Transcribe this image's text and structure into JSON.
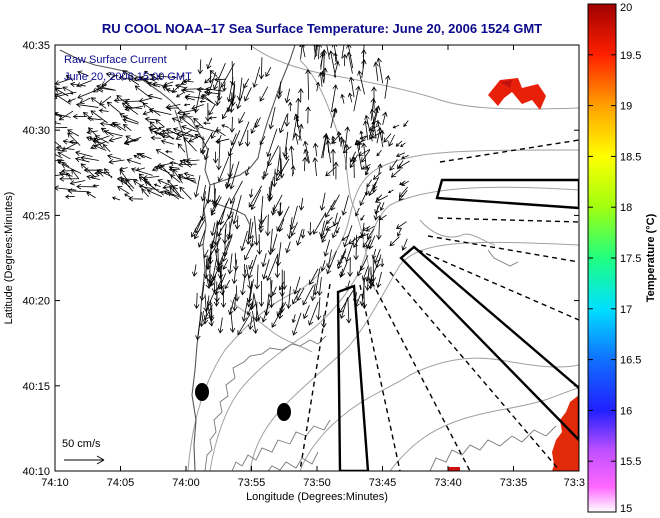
{
  "title": "RU COOL  NOAA–17  Sea Surface Temperature:  June 20, 2006 1524 GMT",
  "legend": {
    "line1": "Raw Surface Current",
    "line2": "June 20, 2006 15:00 GMT"
  },
  "axes": {
    "xlabel": "Longitude (Degrees:Minutes)",
    "ylabel": "Latitude (Degrees:Minutes)",
    "xticks": [
      "74:10",
      "74:05",
      "74:00",
      "73:55",
      "73:50",
      "73:45",
      "73:40",
      "73:35",
      "73:3"
    ],
    "yticks": [
      "40:10",
      "40:15",
      "40:20",
      "40:25",
      "40:30",
      "40:35"
    ]
  },
  "scale_label": "50 cm/s",
  "colorbar": {
    "label": "Temperature (°C)",
    "min": 15,
    "max": 20,
    "ticks": [
      "15",
      "15.5",
      "16",
      "16.5",
      "17",
      "17.5",
      "18",
      "18.5",
      "19",
      "19.5",
      "20"
    ]
  },
  "colors": {
    "title": "#0a0a8c",
    "contour": "#9a9a9a",
    "coast": "#555555",
    "sst_warm": "#e0200a"
  }
}
